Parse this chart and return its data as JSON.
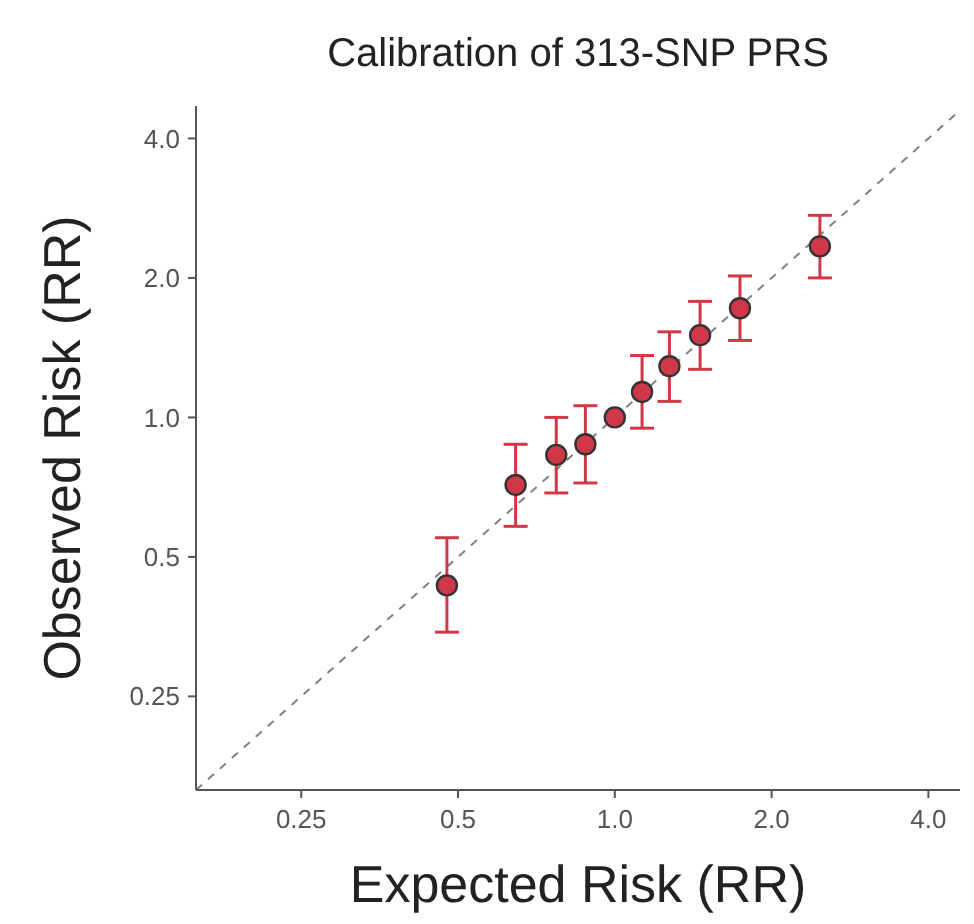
{
  "chart_data": {
    "type": "scatter",
    "title": "Calibration of 313-SNP PRS",
    "xlabel": "Expected Risk (RR)",
    "ylabel": "Observed Risk (RR)",
    "log": "xy",
    "grid": false,
    "marker": "circle",
    "xlim": [
      0.157,
      4.6
    ],
    "ylim": [
      0.157,
      4.7
    ],
    "xticks": [
      0.25,
      0.5,
      {
        "value": 1,
        "label": "1.0"
      },
      {
        "value": 2,
        "label": "2.0"
      },
      {
        "value": 4,
        "label": "4.0"
      }
    ],
    "yticks": [
      0.25,
      0.5,
      {
        "value": 1,
        "label": "1.0"
      },
      {
        "value": 2,
        "label": "2.0"
      },
      {
        "value": 4,
        "label": "4.0"
      }
    ],
    "series": [
      {
        "type": "line",
        "color": "#808080",
        "line_style": "dashed",
        "marker": "none",
        "x": [
          0.157,
          4.6
        ],
        "values": [
          0.157,
          4.6
        ]
      },
      {
        "color": "#d0384a",
        "x": [
          0.476,
          0.645,
          0.772,
          0.878,
          1.0,
          1.128,
          1.273,
          1.458,
          1.739,
          2.476
        ],
        "values": [
          0.434,
          0.715,
          0.83,
          0.875,
          1.0,
          1.135,
          1.29,
          1.505,
          1.72,
          2.34
        ],
        "errors": [
          [
            0.344,
            0.55
          ],
          [
            0.582,
            0.875
          ],
          [
            0.687,
            1.0
          ],
          [
            0.722,
            1.06
          ],
          null,
          [
            0.948,
            1.36
          ],
          [
            1.083,
            1.53
          ],
          [
            1.27,
            1.78
          ],
          [
            1.466,
            2.02
          ],
          [
            2.0,
            2.73
          ]
        ]
      }
    ]
  }
}
